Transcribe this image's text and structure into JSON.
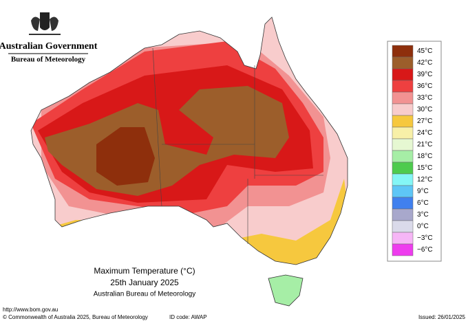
{
  "header": {
    "government": "Australian Government",
    "bureau": "Bureau of Meteorology"
  },
  "map": {
    "title": "Maximum Temperature (°C)",
    "date": "25th January 2025",
    "source": "Australian Bureau of Meteorology"
  },
  "legend": [
    {
      "label": "45°C",
      "color": "#8e2f0c"
    },
    {
      "label": "42°C",
      "color": "#9c5e2b"
    },
    {
      "label": "39°C",
      "color": "#d81818"
    },
    {
      "label": "36°C",
      "color": "#ee4040"
    },
    {
      "label": "33°C",
      "color": "#f29292"
    },
    {
      "label": "30°C",
      "color": "#f8cccc"
    },
    {
      "label": "27°C",
      "color": "#f6c83e"
    },
    {
      "label": "24°C",
      "color": "#f8f0a8"
    },
    {
      "label": "21°C",
      "color": "#e6f8d2"
    },
    {
      "label": "18°C",
      "color": "#a6eea6"
    },
    {
      "label": "15°C",
      "color": "#4ecb4e"
    },
    {
      "label": "12°C",
      "color": "#84f6f6"
    },
    {
      "label": "9°C",
      "color": "#5ec6f6"
    },
    {
      "label": "6°C",
      "color": "#4080ee"
    },
    {
      "label": "3°C",
      "color": "#a8a8cc"
    },
    {
      "label": "0°C",
      "color": "#dadaea"
    },
    {
      "label": "−3°C",
      "color": "#f6b6f6"
    },
    {
      "label": "−6°C",
      "color": "#ee3cee"
    }
  ],
  "footer": {
    "url": "http://www.bom.gov.au",
    "copyright": "© Commonwealth of Australia 2025, Bureau of Meteorology",
    "id_code": "ID code: AWAP",
    "issued": "Issued: 26/01/2025"
  }
}
